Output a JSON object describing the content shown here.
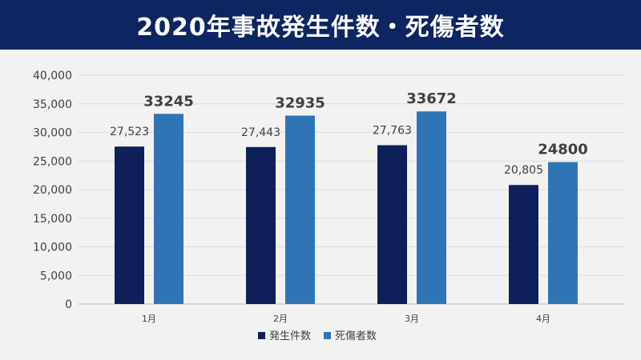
{
  "header": {
    "title": "2020年事故発生件数・死傷者数"
  },
  "chart_data": {
    "type": "bar",
    "categories": [
      "1月",
      "2月",
      "3月",
      "4月"
    ],
    "series": [
      {
        "name": "発生件数",
        "values": [
          27523,
          27443,
          27763,
          20805
        ],
        "labels": [
          "27,523",
          "27,443",
          "27,763",
          "20,805"
        ],
        "color": "#0e1f5a"
      },
      {
        "name": "死傷者数",
        "values": [
          33245,
          32935,
          33672,
          24800
        ],
        "labels": [
          "33245",
          "32935",
          "33672",
          "24800"
        ],
        "color": "#2e75b6"
      }
    ],
    "ylim": [
      0,
      40000
    ],
    "yticks": [
      0,
      5000,
      10000,
      15000,
      20000,
      25000,
      30000,
      35000,
      40000
    ],
    "ytick_labels": [
      "0",
      "5,000",
      "10,000",
      "15,000",
      "20,000",
      "25,000",
      "30,000",
      "35,000",
      "40,000"
    ],
    "grid": true,
    "legend": "bottom-center"
  }
}
